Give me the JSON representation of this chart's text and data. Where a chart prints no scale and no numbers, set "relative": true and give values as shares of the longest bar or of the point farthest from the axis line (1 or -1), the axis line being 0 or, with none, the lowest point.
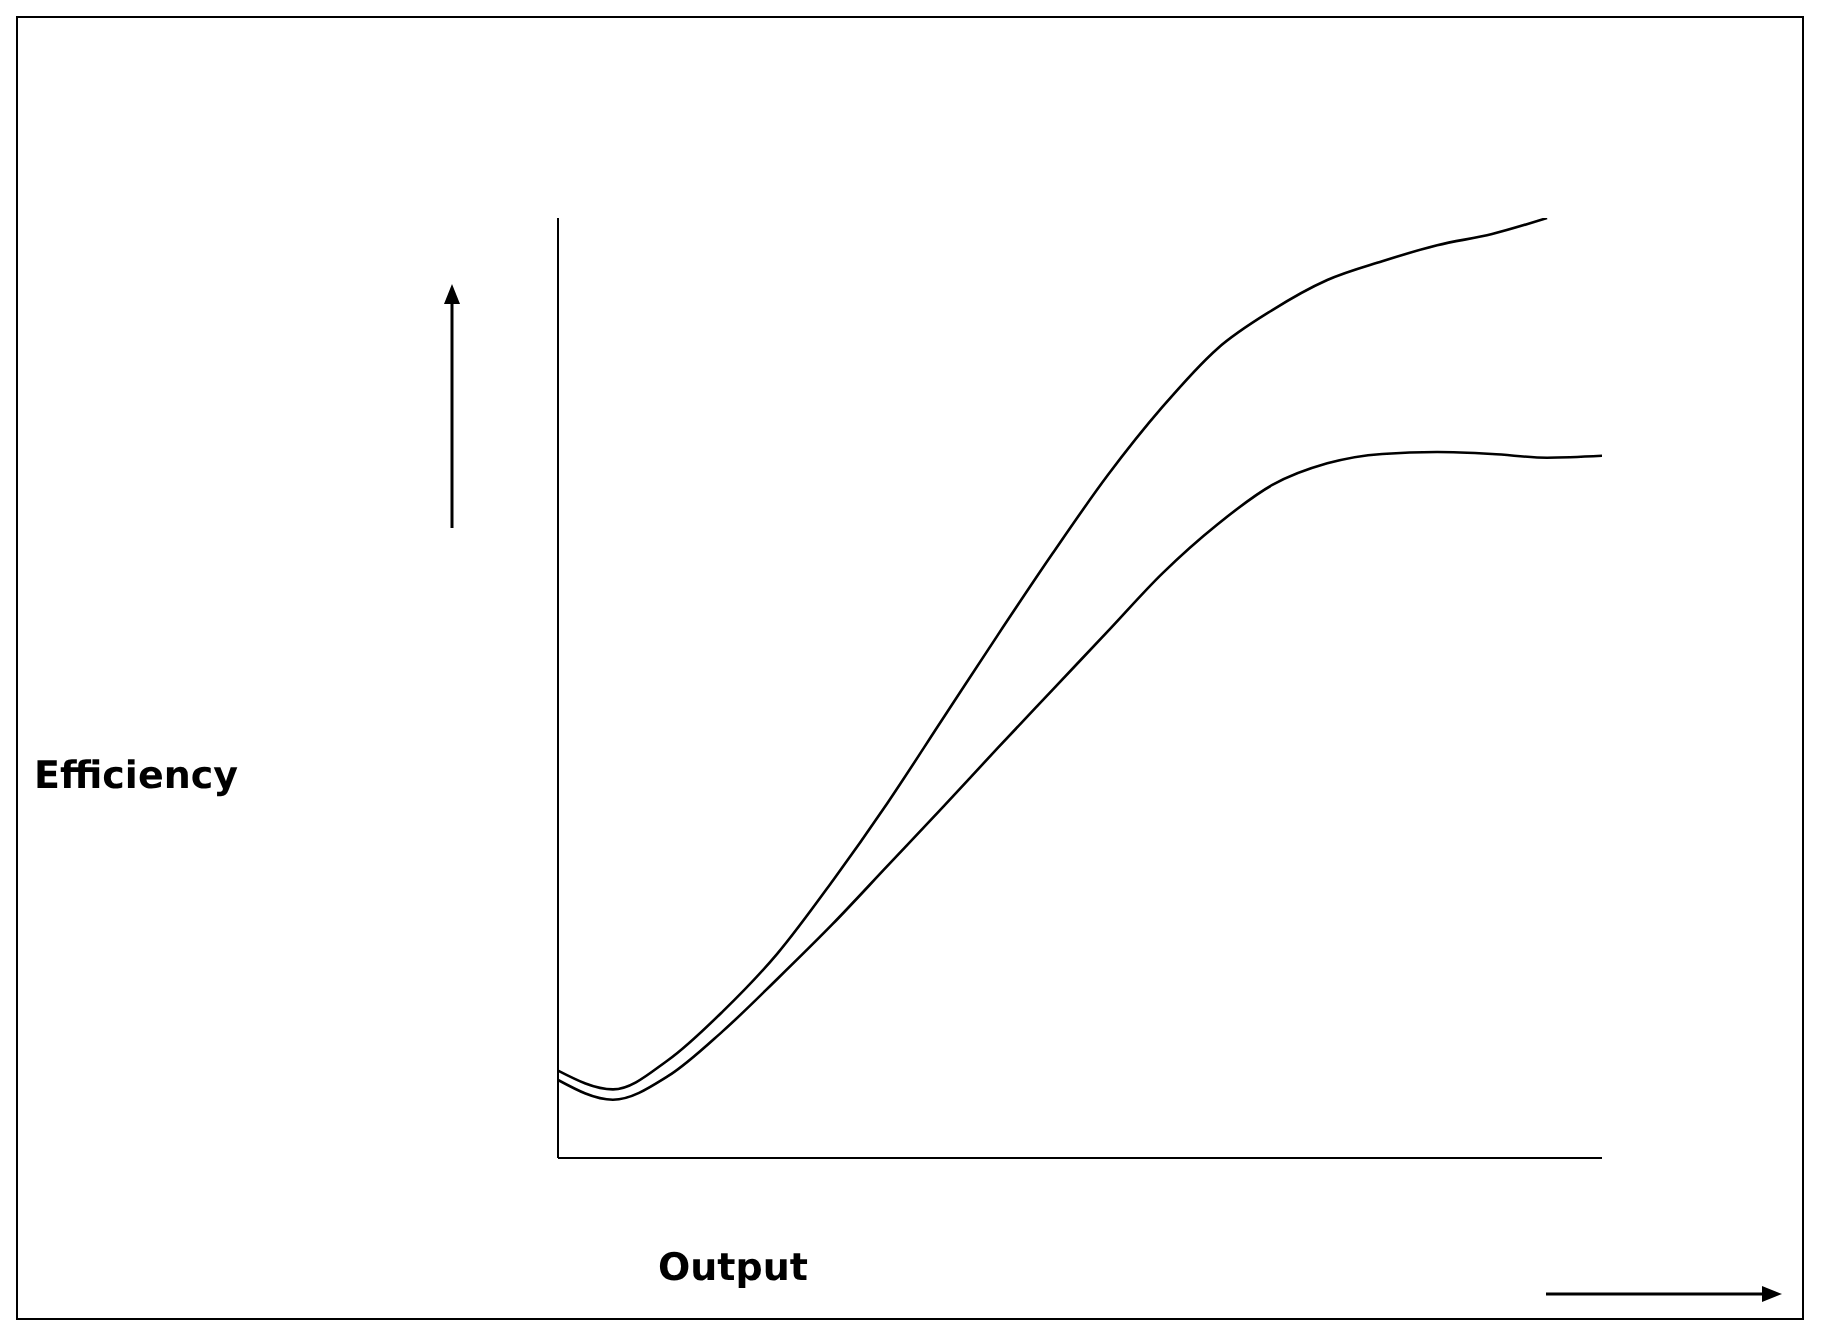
{
  "chart_data": {
    "type": "line",
    "relative": true,
    "xlabel": "Output",
    "annotations": [
      "Efficiency"
    ],
    "categories": [
      null,
      null,
      null,
      null,
      null,
      null,
      null,
      null,
      null,
      null,
      null,
      null,
      null,
      null,
      null,
      null,
      null,
      null,
      null,
      null
    ],
    "grid": false,
    "legend": false,
    "marker": "none",
    "line_style": "solid",
    "series": [
      {
        "color": "#000000",
        "values": [
          0.093,
          0.073,
          0.104,
          0.156,
          0.218,
          0.295,
          0.378,
          0.467,
          0.556,
          0.643,
          0.726,
          0.799,
          0.861,
          0.902,
          0.934,
          0.954,
          0.971,
          0.983,
          1,
          null
        ]
      },
      {
        "color": "#000000",
        "values": [
          0.083,
          0.062,
          0.087,
          0.135,
          0.191,
          0.249,
          0.311,
          0.373,
          0.436,
          0.498,
          0.56,
          0.622,
          0.674,
          0.716,
          0.739,
          0.749,
          0.751,
          0.749,
          0.745,
          0.747
        ]
      }
    ]
  }
}
